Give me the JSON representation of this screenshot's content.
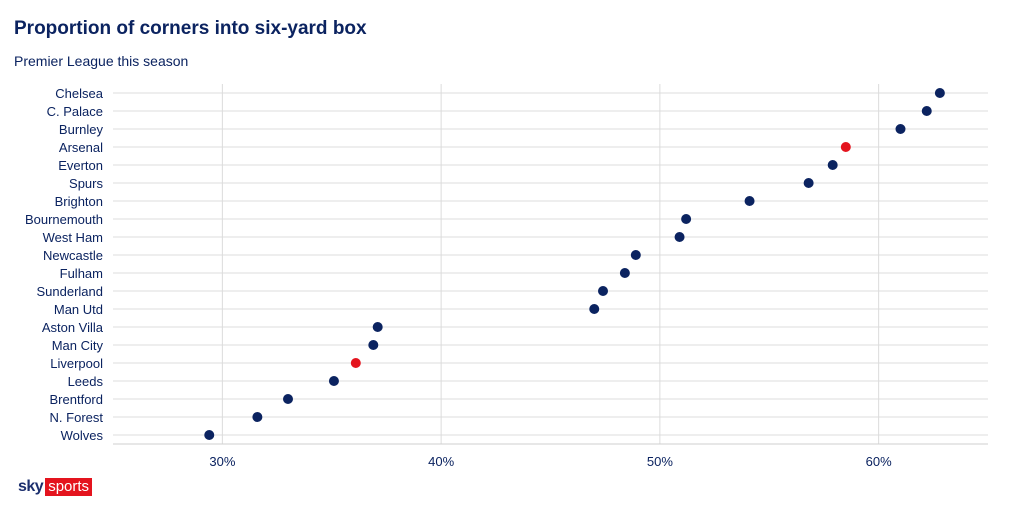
{
  "title": "Proportion of corners into six-yard box",
  "subtitle": "Premier League this season",
  "logo": {
    "sky": "sky",
    "sports": "sports"
  },
  "chart_data": {
    "type": "scatter",
    "title": "Proportion of corners into six-yard box",
    "subtitle": "Premier League this season",
    "xlabel": "",
    "ylabel": "",
    "xlim": [
      25,
      65
    ],
    "xticks": [
      30,
      40,
      50,
      60
    ],
    "xtick_labels": [
      "30%",
      "40%",
      "50%",
      "60%"
    ],
    "grid": true,
    "colors": {
      "default": "#0b2360",
      "highlight": "#e4141e"
    },
    "categories": [
      "Chelsea",
      "C. Palace",
      "Burnley",
      "Arsenal",
      "Everton",
      "Spurs",
      "Brighton",
      "Bournemouth",
      "West Ham",
      "Newcastle",
      "Fulham",
      "Sunderland",
      "Man Utd",
      "Aston Villa",
      "Man City",
      "Liverpool",
      "Leeds",
      "Brentford",
      "N. Forest",
      "Wolves"
    ],
    "values": [
      62.8,
      62.2,
      61.0,
      58.5,
      57.9,
      56.8,
      54.1,
      51.2,
      50.9,
      48.9,
      48.4,
      47.4,
      47.0,
      37.1,
      36.9,
      36.1,
      35.1,
      33.0,
      31.6,
      29.4
    ],
    "highlighted": [
      "Arsenal",
      "Liverpool"
    ]
  }
}
